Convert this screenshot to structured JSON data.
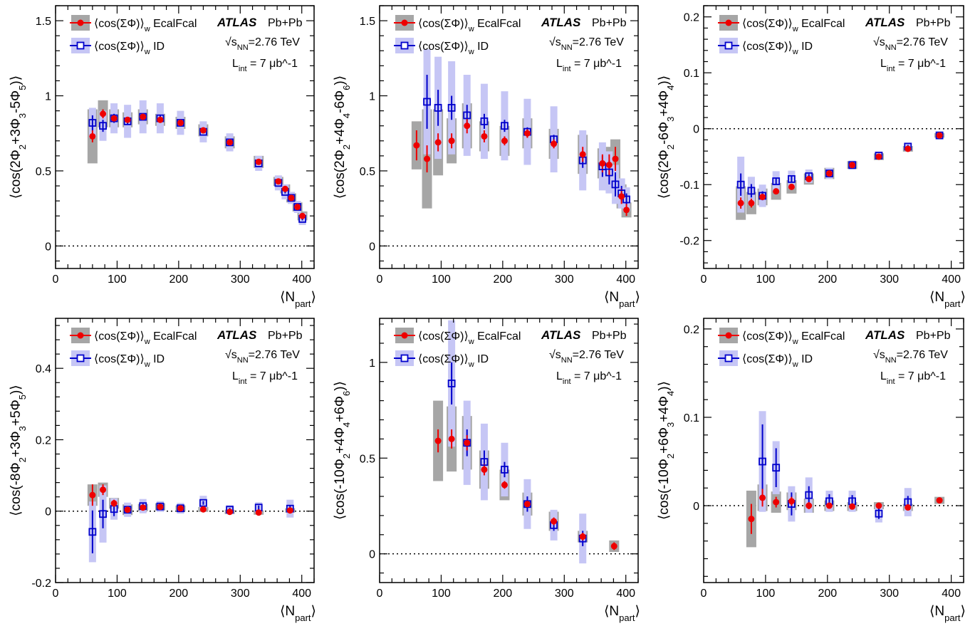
{
  "colors": {
    "ecal_marker": "#ee0000",
    "ecal_syst": "#a6a6a6",
    "id_marker": "#0000cc",
    "id_syst": "#c6c6f5",
    "axis": "#000000"
  },
  "common": {
    "xlabel": "⟨N_part⟩",
    "experiment": "ATLAS",
    "system": "Pb+Pb",
    "energy": "√s_NN=2.76 TeV",
    "lumi": "L_int = 7 μb^-1",
    "legend": [
      {
        "marker": "filled-circle",
        "label": "⟨cos(ΣΦ)⟩_w EcalFcal"
      },
      {
        "marker": "open-square",
        "label": "⟨cos(ΣΦ)⟩_w ID"
      }
    ]
  },
  "chart_data": [
    {
      "type": "scatter",
      "id": "p1",
      "ylabel": "⟨cos(2Φ_2+3Φ_3-5Φ_5)⟩",
      "xlim": [
        0,
        420
      ],
      "ylim": [
        -0.15,
        1.6
      ],
      "xticks": [
        0,
        100,
        200,
        300,
        400
      ],
      "yticks": [
        0,
        0.5,
        1,
        1.5
      ],
      "grid": false,
      "legend_position": "top-left",
      "series": [
        {
          "name": "⟨cos(ΣΦ)⟩_w EcalFcal",
          "x": [
            60,
            77,
            95,
            117,
            142,
            170,
            203,
            240,
            283,
            330,
            362,
            373,
            383,
            393,
            401
          ],
          "y": [
            0.73,
            0.88,
            0.85,
            0.84,
            0.86,
            0.84,
            0.82,
            0.77,
            0.69,
            0.56,
            0.43,
            0.38,
            0.32,
            0.26,
            0.2
          ],
          "stat": [
            0.04,
            0.03,
            0.02,
            0.02,
            0.02,
            0.02,
            0.02,
            0.01,
            0.01,
            0.01,
            0.01,
            0.01,
            0.01,
            0.01,
            0.01
          ],
          "syst": [
            0.18,
            0.09,
            0.06,
            0.05,
            0.05,
            0.04,
            0.04,
            0.04,
            0.04,
            0.04,
            0.03,
            0.03,
            0.03,
            0.03,
            0.03
          ]
        },
        {
          "name": "⟨cos(ΣΦ)⟩_w ID",
          "x": [
            60,
            77,
            95,
            117,
            142,
            170,
            203,
            240,
            283,
            330,
            362,
            373,
            383,
            393,
            401
          ],
          "y": [
            0.82,
            0.8,
            0.85,
            0.83,
            0.86,
            0.85,
            0.82,
            0.76,
            0.69,
            0.55,
            0.42,
            0.36,
            0.32,
            0.26,
            0.18
          ],
          "stat": [
            0.05,
            0.04,
            0.03,
            0.02,
            0.02,
            0.02,
            0.02,
            0.01,
            0.01,
            0.01,
            0.01,
            0.01,
            0.01,
            0.01,
            0.01
          ],
          "syst": [
            0.1,
            0.1,
            0.1,
            0.11,
            0.11,
            0.1,
            0.08,
            0.07,
            0.06,
            0.05,
            0.05,
            0.05,
            0.04,
            0.04,
            0.04
          ]
        }
      ]
    },
    {
      "type": "scatter",
      "id": "p2",
      "ylabel": "⟨cos(2Φ_2+4Φ_4-6Φ_6)⟩",
      "xlim": [
        0,
        420
      ],
      "ylim": [
        -0.15,
        1.6
      ],
      "xticks": [
        0,
        100,
        200,
        300,
        400
      ],
      "yticks": [
        0,
        0.5,
        1,
        1.5
      ],
      "grid": false,
      "legend_position": "top-left",
      "series": [
        {
          "name": "⟨cos(ΣΦ)⟩_w EcalFcal",
          "x": [
            60,
            77,
            95,
            117,
            142,
            170,
            203,
            240,
            283,
            330,
            362,
            373,
            383,
            393,
            401
          ],
          "y": [
            0.67,
            0.58,
            0.69,
            0.7,
            0.8,
            0.73,
            0.7,
            0.75,
            0.68,
            0.61,
            0.55,
            0.54,
            0.58,
            0.33,
            0.24
          ],
          "stat": [
            0.1,
            0.09,
            0.06,
            0.05,
            0.05,
            0.04,
            0.03,
            0.03,
            0.03,
            0.05,
            0.06,
            0.07,
            0.08,
            0.05,
            0.04
          ],
          "syst": [
            0.16,
            0.33,
            0.22,
            0.15,
            0.15,
            0.1,
            0.1,
            0.1,
            0.1,
            0.13,
            0.1,
            0.12,
            0.13,
            0.08,
            0.05
          ]
        },
        {
          "name": "⟨cos(ΣΦ)⟩_w ID",
          "x": [
            60,
            77,
            95,
            117,
            142,
            170,
            203,
            240,
            283,
            330,
            362,
            373,
            383,
            393,
            401
          ],
          "y": [
            null,
            0.96,
            0.92,
            0.92,
            0.87,
            0.83,
            0.8,
            0.76,
            0.71,
            0.57,
            0.53,
            0.49,
            0.41,
            0.35,
            0.31
          ],
          "stat": [
            0,
            0.18,
            0.12,
            0.08,
            0.07,
            0.05,
            0.04,
            0.03,
            0.03,
            0.05,
            0.07,
            0.08,
            0.08,
            0.05,
            0.04
          ],
          "syst": [
            0,
            0.35,
            0.34,
            0.31,
            0.27,
            0.25,
            0.23,
            0.22,
            0.22,
            0.2,
            0.16,
            0.14,
            0.13,
            0.1,
            0.08
          ]
        }
      ]
    },
    {
      "type": "scatter",
      "id": "p3",
      "ylabel": "⟨cos(2Φ_2-6Φ_3+4Φ_4)⟩",
      "xlim": [
        0,
        420
      ],
      "ylim": [
        -0.25,
        0.22
      ],
      "xticks": [
        0,
        100,
        200,
        300,
        400
      ],
      "yticks": [
        -0.2,
        -0.1,
        0,
        0.1,
        0.2
      ],
      "grid": false,
      "legend_position": "top-left",
      "series": [
        {
          "name": "⟨cos(ΣΦ)⟩_w EcalFcal",
          "x": [
            60,
            77,
            95,
            117,
            142,
            170,
            203,
            240,
            283,
            330,
            381
          ],
          "y": [
            -0.133,
            -0.133,
            -0.122,
            -0.112,
            -0.104,
            -0.09,
            -0.08,
            -0.065,
            -0.05,
            -0.036,
            -0.012
          ],
          "stat": [
            0.01,
            0.008,
            0.005,
            0.004,
            0.003,
            0.003,
            0.003,
            0.002,
            0.002,
            0.002,
            0.002
          ],
          "syst": [
            0.03,
            0.02,
            0.015,
            0.015,
            0.012,
            0.01,
            0.01,
            0.007,
            0.006,
            0.005,
            0.004
          ]
        },
        {
          "name": "⟨cos(ΣΦ)⟩_w ID",
          "x": [
            60,
            77,
            95,
            117,
            142,
            170,
            203,
            240,
            283,
            330,
            381
          ],
          "y": [
            -0.1,
            -0.111,
            -0.12,
            -0.094,
            -0.09,
            -0.085,
            -0.08,
            -0.065,
            -0.048,
            -0.032,
            -0.012
          ],
          "stat": [
            0.02,
            0.012,
            0.008,
            0.006,
            0.005,
            0.004,
            0.004,
            0.003,
            0.003,
            0.003,
            0.003
          ],
          "syst": [
            0.05,
            0.025,
            0.02,
            0.018,
            0.015,
            0.012,
            0.01,
            0.008,
            0.006,
            0.005,
            0.004
          ]
        }
      ]
    },
    {
      "type": "scatter",
      "id": "p4",
      "ylabel": "⟨cos(-8Φ_2+3Φ_3+5Φ_5)⟩",
      "xlim": [
        0,
        420
      ],
      "ylim": [
        -0.2,
        0.54
      ],
      "xticks": [
        0,
        100,
        200,
        300,
        400
      ],
      "yticks": [
        -0.2,
        0,
        0.2,
        0.4
      ],
      "grid": false,
      "legend_position": "top-left",
      "series": [
        {
          "name": "⟨cos(ΣΦ)⟩_w EcalFcal",
          "x": [
            60,
            77,
            95,
            117,
            142,
            170,
            203,
            240,
            283,
            330,
            381
          ],
          "y": [
            0.045,
            0.06,
            0.022,
            0.004,
            0.01,
            0.012,
            0.008,
            0.005,
            -0.002,
            -0.004,
            0.002
          ],
          "stat": [
            0.03,
            0.015,
            0.01,
            0.006,
            0.005,
            0.004,
            0.004,
            0.004,
            0.004,
            0.004,
            0.006
          ],
          "syst": [
            0.03,
            0.02,
            0.015,
            0.015,
            0.01,
            0.01,
            0.008,
            0.007,
            0.006,
            0.006,
            0.006
          ]
        },
        {
          "name": "⟨cos(ΣΦ)⟩_w ID",
          "x": [
            60,
            77,
            95,
            117,
            142,
            170,
            203,
            240,
            283,
            330,
            381
          ],
          "y": [
            -0.058,
            -0.008,
            0.006,
            0.004,
            0.014,
            0.013,
            0.008,
            0.023,
            0.004,
            0.01,
            0.007
          ],
          "stat": [
            0.06,
            0.04,
            0.02,
            0.01,
            0.008,
            0.006,
            0.005,
            0.005,
            0.005,
            0.006,
            0.009
          ],
          "syst": [
            0.085,
            0.08,
            0.03,
            0.02,
            0.02,
            0.015,
            0.015,
            0.02,
            0.013,
            0.015,
            0.025
          ]
        }
      ]
    },
    {
      "type": "scatter",
      "id": "p5",
      "ylabel": "⟨cos(-10Φ_2+4Φ_4+6Φ_6)⟩",
      "xlim": [
        0,
        420
      ],
      "ylim": [
        -0.15,
        1.23
      ],
      "xticks": [
        0,
        100,
        200,
        300,
        400
      ],
      "yticks": [
        0,
        0.5,
        1
      ],
      "grid": false,
      "legend_position": "top-left",
      "series": [
        {
          "name": "⟨cos(ΣΦ)⟩_w EcalFcal",
          "x": [
            95,
            117,
            142,
            170,
            203,
            240,
            283,
            330,
            381
          ],
          "y": [
            0.59,
            0.6,
            0.58,
            0.44,
            0.36,
            0.26,
            0.17,
            0.09,
            0.04
          ],
          "stat": [
            0.06,
            0.05,
            0.04,
            0.03,
            0.02,
            0.02,
            0.02,
            0.02,
            0.02
          ],
          "syst": [
            0.21,
            0.17,
            0.14,
            0.1,
            0.08,
            0.06,
            0.05,
            0.03,
            0.03
          ]
        },
        {
          "name": "⟨cos(ΣΦ)⟩_w ID",
          "x": [
            95,
            117,
            142,
            170,
            203,
            240,
            283,
            330,
            381
          ],
          "y": [
            null,
            0.89,
            0.58,
            0.48,
            0.44,
            0.26,
            0.15,
            0.08,
            null
          ],
          "stat": [
            0,
            0.11,
            0.07,
            0.06,
            0.04,
            0.04,
            0.03,
            0.04,
            0
          ],
          "syst": [
            0,
            0.33,
            0.22,
            0.2,
            0.14,
            0.13,
            0.08,
            0.13,
            0
          ]
        }
      ]
    },
    {
      "type": "scatter",
      "id": "p6",
      "ylabel": "⟨cos(-10Φ_2+6Φ_3+4Φ_4)⟩",
      "xlim": [
        0,
        420
      ],
      "ylim": [
        -0.087,
        0.212
      ],
      "xticks": [
        0,
        100,
        200,
        300,
        400
      ],
      "yticks": [
        0,
        0.1,
        0.2
      ],
      "grid": false,
      "legend_position": "top-left",
      "series": [
        {
          "name": "⟨cos(ΣΦ)⟩_w EcalFcal",
          "x": [
            77,
            95,
            117,
            142,
            170,
            203,
            240,
            283,
            330,
            381
          ],
          "y": [
            -0.015,
            0.009,
            0.004,
            0.005,
            0.0,
            0.0,
            -0.001,
            0.0,
            -0.002,
            0.006
          ],
          "stat": [
            0.017,
            0.01,
            0.006,
            0.005,
            0.004,
            0.003,
            0.003,
            0.003,
            0.003,
            0.003
          ],
          "syst": [
            0.032,
            0.015,
            0.012,
            0.01,
            0.008,
            0.006,
            0.005,
            0.004,
            0.004,
            0.004
          ]
        },
        {
          "name": "⟨cos(ΣΦ)⟩_w ID",
          "x": [
            77,
            95,
            117,
            142,
            170,
            203,
            240,
            283,
            330,
            381
          ],
          "y": [
            null,
            0.05,
            0.043,
            0.002,
            0.012,
            0.005,
            0.005,
            -0.009,
            0.004,
            null
          ],
          "stat": [
            0,
            0.042,
            0.022,
            0.013,
            0.01,
            0.008,
            0.007,
            0.006,
            0.007,
            0
          ],
          "syst": [
            0,
            0.057,
            0.03,
            0.02,
            0.02,
            0.012,
            0.012,
            0.01,
            0.016,
            0
          ]
        }
      ]
    }
  ]
}
